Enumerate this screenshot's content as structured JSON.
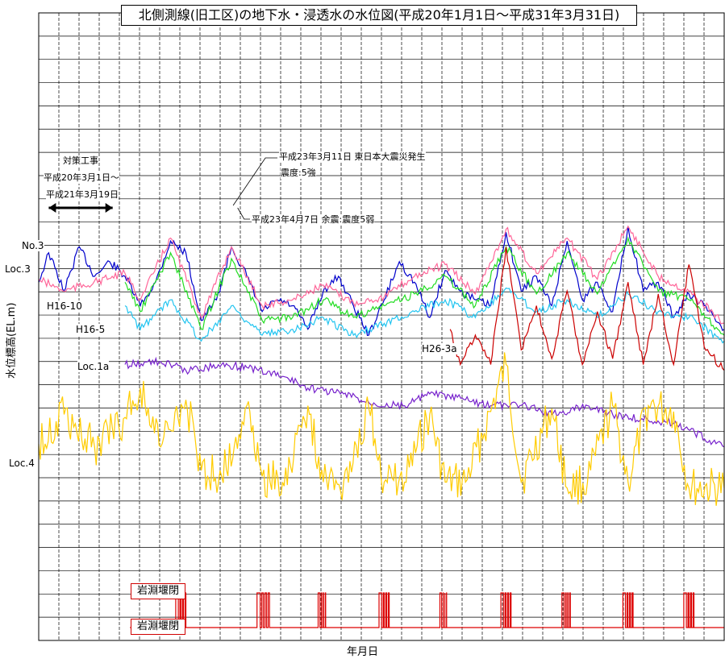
{
  "chart_data": {
    "type": "line",
    "title": "北側測線(旧工区)の地下水・浸透水の水位図(平成20年1月1日～平成31年3月31日)",
    "xlabel": "年月日",
    "ylabel": "水位標高(EL.m)",
    "grid": true,
    "x_range": [
      "2008-01-01",
      "2019-03-31"
    ],
    "series": [
      {
        "name": "No.3",
        "color": "#0000cc",
        "points": [
          [
            "2008-01-01",
            0.78
          ],
          [
            "2008-03-01",
            0.88
          ],
          [
            "2008-06-01",
            0.75
          ],
          [
            "2008-09-01",
            0.9
          ],
          [
            "2008-12-01",
            0.8
          ],
          [
            "2009-03-01",
            0.85
          ],
          [
            "2009-06-01",
            0.8
          ],
          [
            "2009-09-01",
            0.7
          ],
          [
            "2009-12-01",
            0.78
          ],
          [
            "2010-03-01",
            0.92
          ],
          [
            "2010-06-01",
            0.88
          ],
          [
            "2010-09-01",
            0.65
          ],
          [
            "2010-12-01",
            0.72
          ],
          [
            "2011-03-01",
            0.9
          ],
          [
            "2011-06-01",
            0.8
          ],
          [
            "2011-09-01",
            0.68
          ],
          [
            "2011-12-01",
            0.72
          ],
          [
            "2012-03-01",
            0.7
          ],
          [
            "2012-06-01",
            0.62
          ],
          [
            "2012-09-01",
            0.75
          ],
          [
            "2012-12-01",
            0.8
          ],
          [
            "2013-03-01",
            0.7
          ],
          [
            "2013-06-01",
            0.6
          ],
          [
            "2013-09-01",
            0.72
          ],
          [
            "2013-12-01",
            0.85
          ],
          [
            "2014-03-01",
            0.78
          ],
          [
            "2014-06-01",
            0.66
          ],
          [
            "2014-09-01",
            0.82
          ],
          [
            "2014-12-01",
            0.75
          ],
          [
            "2015-03-01",
            0.72
          ],
          [
            "2015-06-01",
            0.7
          ],
          [
            "2015-09-01",
            0.95
          ],
          [
            "2015-12-01",
            0.75
          ],
          [
            "2016-03-01",
            0.8
          ],
          [
            "2016-06-01",
            0.7
          ],
          [
            "2016-09-01",
            0.92
          ],
          [
            "2016-12-01",
            0.72
          ],
          [
            "2017-03-01",
            0.78
          ],
          [
            "2017-06-01",
            0.68
          ],
          [
            "2017-09-01",
            0.97
          ],
          [
            "2017-12-01",
            0.75
          ],
          [
            "2018-03-01",
            0.78
          ],
          [
            "2018-06-01",
            0.66
          ],
          [
            "2018-09-01",
            0.74
          ],
          [
            "2018-12-01",
            0.7
          ],
          [
            "2019-03-31",
            0.62
          ]
        ]
      },
      {
        "name": "Loc.3",
        "color": "#ff6699",
        "points": [
          [
            "2008-01-01",
            0.79
          ],
          [
            "2008-06-01",
            0.75
          ],
          [
            "2009-06-01",
            0.81
          ],
          [
            "2009-09-01",
            0.72
          ],
          [
            "2010-03-01",
            0.93
          ],
          [
            "2010-09-01",
            0.66
          ],
          [
            "2011-03-01",
            0.9
          ],
          [
            "2011-09-01",
            0.7
          ],
          [
            "2012-03-01",
            0.72
          ],
          [
            "2012-09-01",
            0.77
          ],
          [
            "2013-03-01",
            0.71
          ],
          [
            "2013-09-01",
            0.73
          ],
          [
            "2014-03-01",
            0.8
          ],
          [
            "2014-09-01",
            0.84
          ],
          [
            "2015-03-01",
            0.74
          ],
          [
            "2015-09-01",
            0.96
          ],
          [
            "2016-03-01",
            0.81
          ],
          [
            "2016-09-01",
            0.93
          ],
          [
            "2017-03-01",
            0.79
          ],
          [
            "2017-09-01",
            0.97
          ],
          [
            "2018-03-01",
            0.8
          ],
          [
            "2018-09-01",
            0.75
          ],
          [
            "2019-03-31",
            0.64
          ]
        ]
      },
      {
        "name": "H16-10",
        "color": "#22dd22",
        "points": [
          [
            "2009-06-01",
            0.78
          ],
          [
            "2009-09-01",
            0.68
          ],
          [
            "2010-03-01",
            0.88
          ],
          [
            "2010-09-01",
            0.62
          ],
          [
            "2011-03-01",
            0.86
          ],
          [
            "2011-09-01",
            0.65
          ],
          [
            "2012-03-01",
            0.66
          ],
          [
            "2012-09-01",
            0.72
          ],
          [
            "2013-03-01",
            0.66
          ],
          [
            "2013-09-01",
            0.7
          ],
          [
            "2014-03-01",
            0.74
          ],
          [
            "2014-09-01",
            0.8
          ],
          [
            "2015-03-01",
            0.7
          ],
          [
            "2015-09-01",
            0.9
          ],
          [
            "2016-03-01",
            0.74
          ],
          [
            "2016-09-01",
            0.88
          ],
          [
            "2017-03-01",
            0.74
          ],
          [
            "2017-09-01",
            0.93
          ],
          [
            "2018-03-01",
            0.75
          ],
          [
            "2018-09-01",
            0.72
          ],
          [
            "2019-03-31",
            0.6
          ]
        ]
      },
      {
        "name": "H16-5",
        "color": "#22c4f0",
        "points": [
          [
            "2009-06-01",
            0.7
          ],
          [
            "2009-09-01",
            0.62
          ],
          [
            "2010-03-01",
            0.72
          ],
          [
            "2010-09-01",
            0.58
          ],
          [
            "2011-03-01",
            0.7
          ],
          [
            "2011-09-01",
            0.6
          ],
          [
            "2012-03-01",
            0.62
          ],
          [
            "2012-09-01",
            0.66
          ],
          [
            "2013-03-01",
            0.6
          ],
          [
            "2013-09-01",
            0.64
          ],
          [
            "2014-03-01",
            0.68
          ],
          [
            "2014-09-01",
            0.72
          ],
          [
            "2015-03-01",
            0.66
          ],
          [
            "2015-09-01",
            0.76
          ],
          [
            "2016-03-01",
            0.68
          ],
          [
            "2016-09-01",
            0.72
          ],
          [
            "2017-03-01",
            0.66
          ],
          [
            "2017-09-01",
            0.74
          ],
          [
            "2018-03-01",
            0.68
          ],
          [
            "2018-09-01",
            0.66
          ],
          [
            "2019-03-31",
            0.58
          ]
        ]
      },
      {
        "name": "H26-3a",
        "color": "#cc0000",
        "points": [
          [
            "2014-10-01",
            0.62
          ],
          [
            "2014-12-01",
            0.5
          ],
          [
            "2015-03-01",
            0.6
          ],
          [
            "2015-06-01",
            0.5
          ],
          [
            "2015-09-01",
            0.9
          ],
          [
            "2015-12-01",
            0.55
          ],
          [
            "2016-03-01",
            0.7
          ],
          [
            "2016-06-01",
            0.52
          ],
          [
            "2016-09-01",
            0.75
          ],
          [
            "2016-12-01",
            0.5
          ],
          [
            "2017-03-01",
            0.68
          ],
          [
            "2017-06-01",
            0.52
          ],
          [
            "2017-09-01",
            0.78
          ],
          [
            "2017-12-01",
            0.5
          ],
          [
            "2018-03-01",
            0.74
          ],
          [
            "2018-06-01",
            0.5
          ],
          [
            "2018-09-01",
            0.84
          ],
          [
            "2018-12-01",
            0.56
          ],
          [
            "2019-03-31",
            0.48
          ]
        ]
      },
      {
        "name": "Loc.1a",
        "color": "#7722cc",
        "points": [
          [
            "2009-06-01",
            0.5
          ],
          [
            "2010-01-01",
            0.51
          ],
          [
            "2010-06-01",
            0.48
          ],
          [
            "2011-01-01",
            0.5
          ],
          [
            "2011-06-01",
            0.49
          ],
          [
            "2012-01-01",
            0.46
          ],
          [
            "2012-06-01",
            0.42
          ],
          [
            "2013-01-01",
            0.4
          ],
          [
            "2013-06-01",
            0.37
          ],
          [
            "2014-01-01",
            0.36
          ],
          [
            "2014-06-01",
            0.4
          ],
          [
            "2015-01-01",
            0.38
          ],
          [
            "2015-06-01",
            0.36
          ],
          [
            "2016-01-01",
            0.36
          ],
          [
            "2016-06-01",
            0.33
          ],
          [
            "2017-01-01",
            0.36
          ],
          [
            "2017-06-01",
            0.33
          ],
          [
            "2018-01-01",
            0.31
          ],
          [
            "2018-06-01",
            0.3
          ],
          [
            "2019-03-31",
            0.22
          ]
        ]
      },
      {
        "name": "Loc.4",
        "color": "#ffcc00",
        "points": [
          [
            "2008-01-01",
            0.23
          ],
          [
            "2008-06-01",
            0.33
          ],
          [
            "2008-12-01",
            0.22
          ],
          [
            "2009-06-01",
            0.32
          ],
          [
            "2009-09-01",
            0.42
          ],
          [
            "2010-01-01",
            0.22
          ],
          [
            "2010-06-01",
            0.38
          ],
          [
            "2010-09-01",
            0.14
          ],
          [
            "2011-01-01",
            0.12
          ],
          [
            "2011-06-01",
            0.36
          ],
          [
            "2011-09-01",
            0.12
          ],
          [
            "2012-01-01",
            0.1
          ],
          [
            "2012-06-01",
            0.36
          ],
          [
            "2012-09-01",
            0.1
          ],
          [
            "2013-01-01",
            0.1
          ],
          [
            "2013-06-01",
            0.35
          ],
          [
            "2013-09-01",
            0.1
          ],
          [
            "2014-01-01",
            0.1
          ],
          [
            "2014-06-01",
            0.33
          ],
          [
            "2014-09-01",
            0.1
          ],
          [
            "2015-01-01",
            0.1
          ],
          [
            "2015-06-01",
            0.34
          ],
          [
            "2015-09-01",
            0.5
          ],
          [
            "2015-12-01",
            0.1
          ],
          [
            "2016-06-01",
            0.35
          ],
          [
            "2016-09-01",
            0.08
          ],
          [
            "2017-01-01",
            0.1
          ],
          [
            "2017-06-01",
            0.36
          ],
          [
            "2017-09-01",
            0.1
          ],
          [
            "2018-01-01",
            0.36
          ],
          [
            "2018-06-01",
            0.34
          ],
          [
            "2018-09-01",
            0.08
          ],
          [
            "2019-03-31",
            0.08
          ]
        ]
      }
    ],
    "gate_series": {
      "label_open": "岩淵堰閉",
      "label_closed": "岩淵堰閉",
      "color": "#dd0000",
      "open_periods": [
        [
          "2010-04-01",
          "2010-06-01"
        ],
        [
          "2011-08-01",
          "2011-10-15"
        ],
        [
          "2012-08-01",
          "2012-09-15"
        ],
        [
          "2013-08-01",
          "2013-10-01"
        ],
        [
          "2014-08-01",
          "2014-09-10"
        ],
        [
          "2015-08-01",
          "2015-10-01"
        ],
        [
          "2016-08-01",
          "2016-09-20"
        ],
        [
          "2017-08-01",
          "2017-10-01"
        ],
        [
          "2018-08-01",
          "2018-10-01"
        ]
      ]
    },
    "annotations": {
      "works_line1": "対策工事",
      "works_line2": "平成20年3月1日～",
      "works_line3": "平成21年3月19日",
      "works_start": "2008-03-01",
      "works_end": "2009-03-19",
      "quake_line1": "平成23年3月11日 東日本大震災発生",
      "quake_line2": "震度:5強",
      "quake_date": "2011-03-11",
      "aftershock": "平成23年4月7日 余震:震度5弱",
      "aftershock_date": "2011-04-07"
    }
  }
}
